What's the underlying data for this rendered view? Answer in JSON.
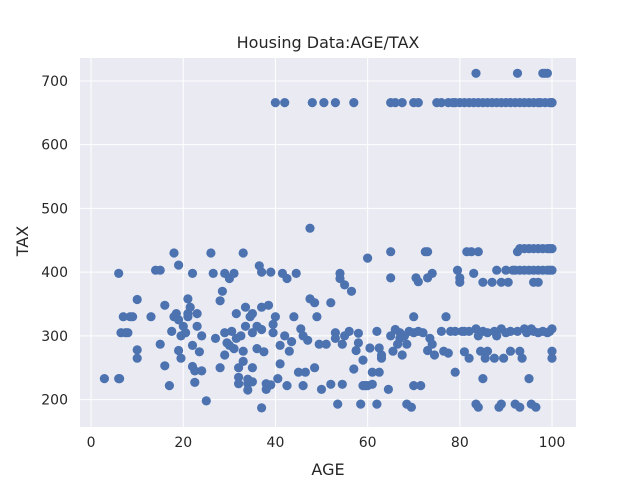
{
  "chart_data": {
    "type": "scatter",
    "title": "Housing Data:AGE/TAX",
    "xlabel": "AGE",
    "ylabel": "TAX",
    "xlim": [
      -2.4,
      105.2
    ],
    "ylim": [
      157,
      736
    ],
    "xticks": [
      0,
      20,
      40,
      60,
      80,
      100
    ],
    "yticks": [
      200,
      300,
      400,
      500,
      600,
      700
    ],
    "grid": true,
    "point_color": "#4c72b0",
    "plot_background": "#eaeaf2",
    "grid_color": "#ffffff",
    "points": [
      [
        2.9,
        233
      ],
      [
        6.0,
        233
      ],
      [
        6.2,
        233
      ],
      [
        6.0,
        398
      ],
      [
        6.5,
        305
      ],
      [
        7.0,
        330
      ],
      [
        7.5,
        305
      ],
      [
        8.0,
        305
      ],
      [
        8.5,
        330
      ],
      [
        9.0,
        330
      ],
      [
        10.0,
        357
      ],
      [
        10.0,
        278
      ],
      [
        10.0,
        265
      ],
      [
        13.0,
        330
      ],
      [
        14.0,
        403
      ],
      [
        15.0,
        287
      ],
      [
        15.0,
        403
      ],
      [
        16.0,
        348
      ],
      [
        16.0,
        253
      ],
      [
        17.0,
        222
      ],
      [
        17.5,
        307
      ],
      [
        18.0,
        430
      ],
      [
        18.0,
        330
      ],
      [
        18.5,
        335
      ],
      [
        19.0,
        411
      ],
      [
        19.0,
        325
      ],
      [
        19.5,
        300
      ],
      [
        19.0,
        277
      ],
      [
        19.5,
        265
      ],
      [
        20.0,
        315
      ],
      [
        20.5,
        305
      ],
      [
        21.0,
        358
      ],
      [
        21.0,
        330
      ],
      [
        21.0,
        335
      ],
      [
        21.5,
        345
      ],
      [
        22.0,
        398
      ],
      [
        22.0,
        285
      ],
      [
        22.0,
        252
      ],
      [
        22.5,
        227
      ],
      [
        22.5,
        245
      ],
      [
        23.0,
        315
      ],
      [
        23.0,
        335
      ],
      [
        23.5,
        275
      ],
      [
        24.0,
        300
      ],
      [
        24.0,
        245
      ],
      [
        25.0,
        198
      ],
      [
        26.0,
        430
      ],
      [
        26.5,
        398
      ],
      [
        27.0,
        296
      ],
      [
        28.0,
        250
      ],
      [
        28.0,
        355
      ],
      [
        28.5,
        370
      ],
      [
        29.0,
        398
      ],
      [
        29.0,
        305
      ],
      [
        29.0,
        270
      ],
      [
        29.5,
        289
      ],
      [
        30.0,
        285
      ],
      [
        30.0,
        390
      ],
      [
        30.5,
        307
      ],
      [
        31.0,
        398
      ],
      [
        31.0,
        280
      ],
      [
        31.5,
        335
      ],
      [
        31.5,
        296
      ],
      [
        32.0,
        250
      ],
      [
        32.0,
        235
      ],
      [
        32.0,
        225
      ],
      [
        32.5,
        300
      ],
      [
        33.0,
        430
      ],
      [
        33.0,
        276
      ],
      [
        33.0,
        260
      ],
      [
        33.5,
        345
      ],
      [
        33.5,
        315
      ],
      [
        34.0,
        225
      ],
      [
        34.0,
        215
      ],
      [
        34.0,
        232
      ],
      [
        34.5,
        330
      ],
      [
        35.0,
        335
      ],
      [
        35.0,
        305
      ],
      [
        35.0,
        250
      ],
      [
        35.0,
        228
      ],
      [
        36.0,
        280
      ],
      [
        36.0,
        315
      ],
      [
        36.5,
        410
      ],
      [
        37.0,
        400
      ],
      [
        37.0,
        345
      ],
      [
        37.0,
        310
      ],
      [
        37.5,
        275
      ],
      [
        37.0,
        187
      ],
      [
        38.0,
        225
      ],
      [
        38.0,
        216
      ],
      [
        38.5,
        348
      ],
      [
        39.0,
        400
      ],
      [
        39.0,
        223
      ],
      [
        39.5,
        305
      ],
      [
        39.5,
        318
      ],
      [
        40.0,
        666
      ],
      [
        40.0,
        330
      ],
      [
        40.5,
        233
      ],
      [
        41.0,
        285
      ],
      [
        41.0,
        256
      ],
      [
        41.5,
        398
      ],
      [
        42.0,
        666
      ],
      [
        42.0,
        300
      ],
      [
        42.5,
        390
      ],
      [
        42.5,
        222
      ],
      [
        43.0,
        276
      ],
      [
        43.5,
        291
      ],
      [
        44.0,
        330
      ],
      [
        44.5,
        398
      ],
      [
        45.0,
        243
      ],
      [
        45.5,
        311
      ],
      [
        46.0,
        222
      ],
      [
        46.0,
        300
      ],
      [
        46.5,
        243
      ],
      [
        47.0,
        293
      ],
      [
        47.5,
        469
      ],
      [
        47.5,
        358
      ],
      [
        48.0,
        666
      ],
      [
        48.5,
        352
      ],
      [
        48.5,
        250
      ],
      [
        49.0,
        330
      ],
      [
        49.5,
        287
      ],
      [
        50.0,
        216
      ],
      [
        50.5,
        666
      ],
      [
        51.0,
        287
      ],
      [
        52.0,
        352
      ],
      [
        52.0,
        224
      ],
      [
        53.0,
        666
      ],
      [
        53.0,
        305
      ],
      [
        53.0,
        296
      ],
      [
        53.5,
        193
      ],
      [
        54.0,
        398
      ],
      [
        54.0,
        390
      ],
      [
        54.5,
        287
      ],
      [
        54.5,
        224
      ],
      [
        55.0,
        380
      ],
      [
        55.0,
        300
      ],
      [
        56.0,
        307
      ],
      [
        56.5,
        370
      ],
      [
        57.0,
        248
      ],
      [
        57.0,
        666
      ],
      [
        57.5,
        277
      ],
      [
        58.0,
        304
      ],
      [
        58.0,
        289
      ],
      [
        58.5,
        193
      ],
      [
        59.0,
        222
      ],
      [
        59.0,
        262
      ],
      [
        59.5,
        222
      ],
      [
        60.0,
        422
      ],
      [
        60.0,
        222
      ],
      [
        60.5,
        281
      ],
      [
        61.0,
        224
      ],
      [
        61.0,
        243
      ],
      [
        62.0,
        307
      ],
      [
        62.0,
        193
      ],
      [
        62.5,
        281
      ],
      [
        62.5,
        243
      ],
      [
        63.0,
        265
      ],
      [
        63.0,
        270
      ],
      [
        64.5,
        216
      ],
      [
        65.0,
        666
      ],
      [
        65.0,
        432
      ],
      [
        65.0,
        391
      ],
      [
        65.0,
        300
      ],
      [
        65.5,
        276
      ],
      [
        66.0,
        666
      ],
      [
        66.0,
        310
      ],
      [
        66.5,
        287
      ],
      [
        67.0,
        305
      ],
      [
        67.0,
        296
      ],
      [
        67.5,
        666
      ],
      [
        67.5,
        270
      ],
      [
        68.0,
        300
      ],
      [
        68.5,
        287
      ],
      [
        68.5,
        193
      ],
      [
        69.0,
        307
      ],
      [
        69.5,
        188
      ],
      [
        70.0,
        666
      ],
      [
        70.0,
        330
      ],
      [
        70.0,
        305
      ],
      [
        70.0,
        222
      ],
      [
        70.5,
        391
      ],
      [
        71.0,
        666
      ],
      [
        71.0,
        307
      ],
      [
        71.0,
        385
      ],
      [
        71.5,
        222
      ],
      [
        72.0,
        305
      ],
      [
        72.5,
        432
      ],
      [
        73.0,
        432
      ],
      [
        73.0,
        277
      ],
      [
        73.0,
        391
      ],
      [
        73.5,
        296
      ],
      [
        74.0,
        398
      ],
      [
        74.0,
        287
      ],
      [
        74.5,
        270
      ],
      [
        75.0,
        666
      ],
      [
        76.0,
        666
      ],
      [
        76.0,
        307
      ],
      [
        76.5,
        276
      ],
      [
        77.0,
        330
      ],
      [
        77.5,
        666
      ],
      [
        77.5,
        273
      ],
      [
        78.0,
        307
      ],
      [
        78.5,
        666
      ],
      [
        79.0,
        666
      ],
      [
        79.0,
        307
      ],
      [
        79.0,
        243
      ],
      [
        79.5,
        403
      ],
      [
        80.0,
        666
      ],
      [
        80.0,
        391
      ],
      [
        80.0,
        384
      ],
      [
        80.5,
        307
      ],
      [
        81.0,
        666
      ],
      [
        81.0,
        307
      ],
      [
        81.0,
        275
      ],
      [
        81.5,
        432
      ],
      [
        82.0,
        666
      ],
      [
        82.0,
        307
      ],
      [
        82.0,
        265
      ],
      [
        82.5,
        432
      ],
      [
        83.0,
        666
      ],
      [
        83.0,
        398
      ],
      [
        83.5,
        712
      ],
      [
        83.5,
        311
      ],
      [
        83.5,
        193
      ],
      [
        84.0,
        666
      ],
      [
        84.0,
        432
      ],
      [
        84.0,
        300
      ],
      [
        84.0,
        188
      ],
      [
        84.5,
        276
      ],
      [
        85.0,
        666
      ],
      [
        85.0,
        384
      ],
      [
        85.0,
        307
      ],
      [
        85.0,
        233
      ],
      [
        85.5,
        265
      ],
      [
        86.0,
        666
      ],
      [
        86.0,
        305
      ],
      [
        86.0,
        276
      ],
      [
        87.0,
        666
      ],
      [
        87.0,
        384
      ],
      [
        87.5,
        307
      ],
      [
        87.5,
        265
      ],
      [
        88.0,
        666
      ],
      [
        88.0,
        403
      ],
      [
        88.0,
        300
      ],
      [
        88.5,
        188
      ],
      [
        89.0,
        666
      ],
      [
        89.0,
        384
      ],
      [
        89.0,
        311
      ],
      [
        89.0,
        193
      ],
      [
        89.5,
        265
      ],
      [
        90.0,
        666
      ],
      [
        90.0,
        403
      ],
      [
        90.0,
        305
      ],
      [
        90.5,
        384
      ],
      [
        91.0,
        666
      ],
      [
        91.0,
        307
      ],
      [
        91.0,
        276
      ],
      [
        91.5,
        403
      ],
      [
        92.0,
        666
      ],
      [
        92.0,
        403
      ],
      [
        92.0,
        193
      ],
      [
        92.5,
        712
      ],
      [
        92.5,
        432
      ],
      [
        92.5,
        307
      ],
      [
        93.0,
        666
      ],
      [
        93.0,
        437
      ],
      [
        93.0,
        403
      ],
      [
        93.0,
        276
      ],
      [
        93.0,
        188
      ],
      [
        93.5,
        265
      ],
      [
        94.0,
        666
      ],
      [
        94.0,
        437
      ],
      [
        94.0,
        403
      ],
      [
        94.0,
        311
      ],
      [
        94.5,
        305
      ],
      [
        95.0,
        666
      ],
      [
        95.0,
        437
      ],
      [
        95.0,
        403
      ],
      [
        95.0,
        233
      ],
      [
        95.5,
        311
      ],
      [
        95.5,
        193
      ],
      [
        96.0,
        666
      ],
      [
        96.0,
        437
      ],
      [
        96.0,
        403
      ],
      [
        96.0,
        384
      ],
      [
        96.0,
        307
      ],
      [
        96.5,
        188
      ],
      [
        97.0,
        666
      ],
      [
        97.0,
        437
      ],
      [
        97.0,
        403
      ],
      [
        97.0,
        384
      ],
      [
        97.0,
        305
      ],
      [
        97.5,
        666
      ],
      [
        98.0,
        712
      ],
      [
        98.0,
        437
      ],
      [
        98.0,
        403
      ],
      [
        98.0,
        307
      ],
      [
        98.5,
        712
      ],
      [
        98.5,
        666
      ],
      [
        99.0,
        712
      ],
      [
        99.0,
        437
      ],
      [
        99.0,
        403
      ],
      [
        99.0,
        305
      ],
      [
        99.5,
        666
      ],
      [
        99.5,
        437
      ],
      [
        99.5,
        403
      ],
      [
        99.5,
        307
      ],
      [
        100.0,
        666
      ],
      [
        100.0,
        666
      ],
      [
        100.0,
        437
      ],
      [
        100.0,
        403
      ],
      [
        100.0,
        311
      ],
      [
        100.0,
        276
      ],
      [
        100.0,
        265
      ]
    ]
  }
}
